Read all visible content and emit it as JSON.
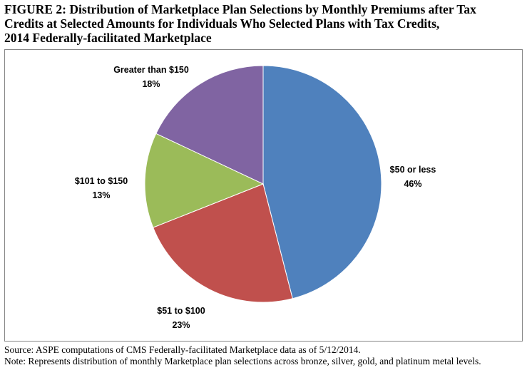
{
  "figure": {
    "title_lines": [
      "FIGURE 2: Distribution of Marketplace Plan Selections by Monthly Premiums after Tax",
      "Credits at Selected Amounts for Individuals Who Selected Plans with Tax Credits,",
      "2014 Federally-facilitated Marketplace"
    ],
    "source": "Source: ASPE computations of CMS Federally-facilitated Marketplace data as of 5/12/2014.",
    "note": "Note: Represents distribution of monthly Marketplace plan selections across bronze, silver, gold, and platinum metal levels."
  },
  "chart_data": {
    "type": "pie",
    "title": "FIGURE 2: Distribution of Marketplace Plan Selections by Monthly Premiums after Tax Credits at Selected Amounts for Individuals Who Selected Plans with Tax Credits, 2014 Federally-facilitated Marketplace",
    "start_angle": "12 o'clock",
    "direction": "clockwise",
    "slices": [
      {
        "label": "$50 or less",
        "value": 46,
        "value_label": "46%",
        "color": "#4F81BD"
      },
      {
        "label": "$51 to $100",
        "value": 23,
        "value_label": "23%",
        "color": "#C0504D"
      },
      {
        "label": "$101 to $150",
        "value": 13,
        "value_label": "13%",
        "color": "#9BBB59"
      },
      {
        "label": "Greater than $150",
        "value": 18,
        "value_label": "18%",
        "color": "#8064A2"
      }
    ],
    "legend": "none",
    "data_labels": "outside"
  }
}
